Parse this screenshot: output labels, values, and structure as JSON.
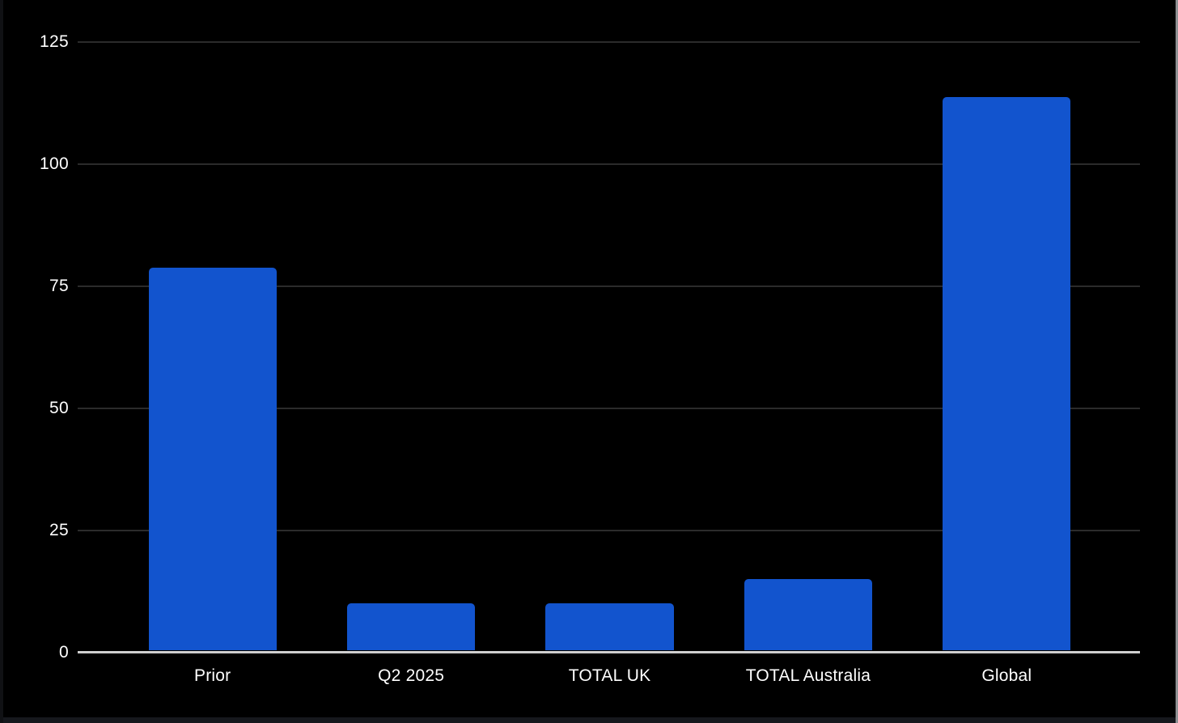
{
  "chart_data": {
    "type": "bar",
    "title": "",
    "xlabel": "",
    "ylabel": "",
    "categories": [
      "Prior",
      "Q2 2025",
      "TOTAL UK",
      "TOTAL Australia",
      "Global"
    ],
    "values": [
      78.7,
      9.6,
      9.6,
      14.6,
      113.7
    ],
    "ylim": [
      0,
      125
    ],
    "yticks": [
      0,
      25,
      50,
      75,
      100,
      125
    ],
    "grid": true,
    "legend": false,
    "colors": {
      "bar": "#1254CE",
      "background": "#000000",
      "gridline": "#2B2B2B",
      "axis_line": "#CFCFCF",
      "tick_label": "#FFFFFF",
      "category_label": "#FFFFFF"
    }
  },
  "frame": {
    "left_edge_color": "#101114",
    "right_edge_color": "#8E9093",
    "bottom_edge_color": "#16181D"
  }
}
